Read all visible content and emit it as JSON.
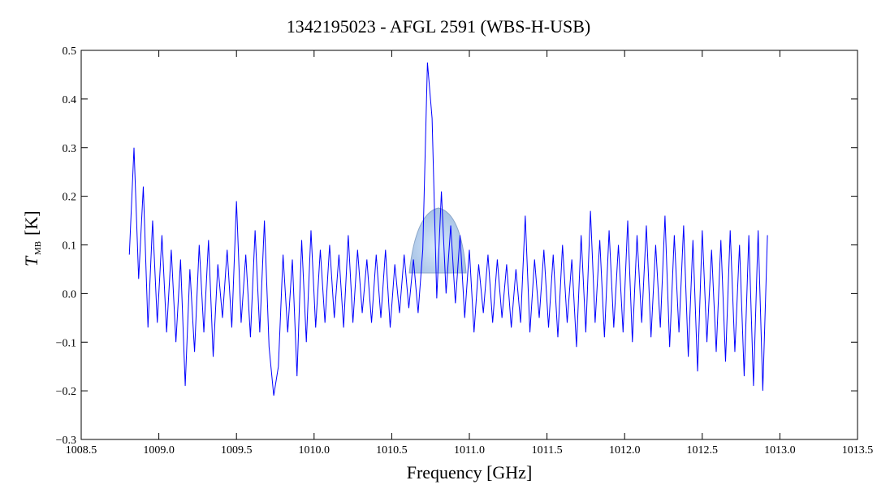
{
  "chart_data": {
    "type": "line",
    "title": "1342195023 - AFGL 2591 (WBS-H-USB)",
    "x_label": "Frequency [GHz]",
    "y_label": {
      "symbol": "T",
      "subscript": "MB",
      "unit": "[K]"
    },
    "xlim": [
      1008.5,
      1013.5
    ],
    "xticks": [
      1008.5,
      {
        "value": 1009,
        "label": "1009.0"
      },
      1009.5,
      {
        "value": 1010,
        "label": "1010.0"
      },
      1010.5,
      {
        "value": 1011,
        "label": "1011.0"
      },
      1011.5,
      {
        "value": 1012,
        "label": "1012.0"
      },
      1012.5,
      {
        "value": 1013,
        "label": "1013.0"
      },
      1013.5
    ],
    "ylim": [
      -0.3,
      0.5
    ],
    "yticks": [
      {
        "value": -0.3,
        "label": "−0.3"
      },
      {
        "value": -0.2,
        "label": "−0.2"
      },
      {
        "value": -0.1,
        "label": "−0.1"
      },
      {
        "value": 0,
        "label": "0.0"
      },
      0.1,
      0.2,
      0.3,
      0.4,
      0.5
    ],
    "series": [
      {
        "name": "WBS-H-USB",
        "color": "#0000ff",
        "x": [
          1008.81,
          1008.84,
          1008.87,
          1008.9,
          1008.93,
          1008.96,
          1008.99,
          1009.02,
          1009.05,
          1009.08,
          1009.11,
          1009.14,
          1009.17,
          1009.2,
          1009.23,
          1009.26,
          1009.29,
          1009.32,
          1009.35,
          1009.38,
          1009.41,
          1009.44,
          1009.47,
          1009.5,
          1009.53,
          1009.56,
          1009.59,
          1009.62,
          1009.65,
          1009.68,
          1009.71,
          1009.74,
          1009.77,
          1009.8,
          1009.83,
          1009.86,
          1009.89,
          1009.92,
          1009.95,
          1009.98,
          1010.01,
          1010.04,
          1010.07,
          1010.1,
          1010.13,
          1010.16,
          1010.19,
          1010.22,
          1010.25,
          1010.28,
          1010.31,
          1010.34,
          1010.37,
          1010.4,
          1010.43,
          1010.46,
          1010.49,
          1010.52,
          1010.55,
          1010.58,
          1010.61,
          1010.64,
          1010.67,
          1010.7,
          1010.73,
          1010.76,
          1010.79,
          1010.82,
          1010.85,
          1010.88,
          1010.91,
          1010.94,
          1010.97,
          1011.0,
          1011.03,
          1011.06,
          1011.09,
          1011.12,
          1011.15,
          1011.18,
          1011.21,
          1011.24,
          1011.27,
          1011.3,
          1011.33,
          1011.36,
          1011.39,
          1011.42,
          1011.45,
          1011.48,
          1011.51,
          1011.54,
          1011.57,
          1011.6,
          1011.63,
          1011.66,
          1011.69,
          1011.72,
          1011.75,
          1011.78,
          1011.81,
          1011.84,
          1011.87,
          1011.9,
          1011.93,
          1011.96,
          1011.99,
          1012.02,
          1012.05,
          1012.08,
          1012.11,
          1012.14,
          1012.17,
          1012.2,
          1012.23,
          1012.26,
          1012.29,
          1012.32,
          1012.35,
          1012.38,
          1012.41,
          1012.44,
          1012.47,
          1012.5,
          1012.53,
          1012.56,
          1012.59,
          1012.62,
          1012.65,
          1012.68,
          1012.71,
          1012.74,
          1012.77,
          1012.8,
          1012.83,
          1012.86,
          1012.89,
          1012.92
        ],
        "values": [
          0.08,
          0.3,
          0.03,
          0.22,
          -0.07,
          0.15,
          -0.06,
          0.12,
          -0.08,
          0.09,
          -0.1,
          0.07,
          -0.19,
          0.05,
          -0.12,
          0.1,
          -0.08,
          0.11,
          -0.13,
          0.06,
          -0.05,
          0.09,
          -0.07,
          0.19,
          -0.06,
          0.08,
          -0.09,
          0.13,
          -0.08,
          0.15,
          -0.11,
          -0.21,
          -0.15,
          0.08,
          -0.08,
          0.07,
          -0.17,
          0.11,
          -0.1,
          0.13,
          -0.07,
          0.09,
          -0.06,
          0.1,
          -0.05,
          0.08,
          -0.07,
          0.12,
          -0.06,
          0.09,
          -0.04,
          0.07,
          -0.06,
          0.08,
          -0.05,
          0.09,
          -0.07,
          0.06,
          -0.04,
          0.08,
          -0.03,
          0.07,
          -0.04,
          0.09,
          0.475,
          0.36,
          -0.01,
          0.21,
          0.0,
          0.14,
          -0.02,
          0.12,
          -0.05,
          0.09,
          -0.08,
          0.06,
          -0.04,
          0.08,
          -0.06,
          0.07,
          -0.05,
          0.06,
          -0.07,
          0.05,
          -0.06,
          0.16,
          -0.08,
          0.07,
          -0.05,
          0.09,
          -0.07,
          0.08,
          -0.09,
          0.1,
          -0.06,
          0.07,
          -0.11,
          0.12,
          -0.08,
          0.17,
          -0.06,
          0.11,
          -0.09,
          0.13,
          -0.07,
          0.1,
          -0.08,
          0.15,
          -0.1,
          0.12,
          -0.06,
          0.14,
          -0.09,
          0.1,
          -0.07,
          0.16,
          -0.11,
          0.12,
          -0.08,
          0.14,
          -0.13,
          0.11,
          -0.16,
          0.13,
          -0.1,
          0.09,
          -0.12,
          0.11,
          -0.14,
          0.13,
          -0.12,
          0.1,
          -0.17,
          0.12,
          -0.19,
          0.13,
          -0.2,
          0.12
        ]
      }
    ]
  }
}
